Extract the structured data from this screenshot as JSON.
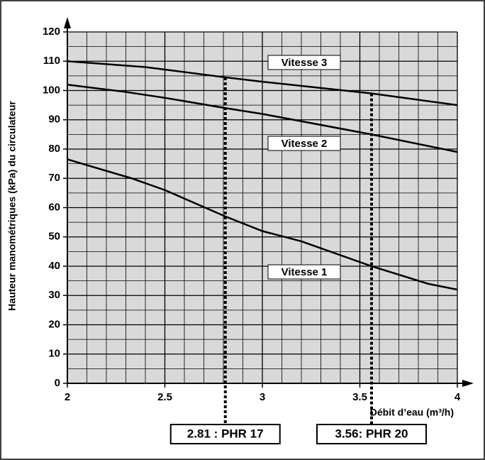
{
  "chart_data": {
    "type": "line",
    "x_label": "Débit d’eau (m³/h)",
    "y_label": "Hauteur manométriques (kPa)  du circulateur",
    "xlim": [
      2,
      4
    ],
    "ylim": [
      0,
      120
    ],
    "xticks": [
      2,
      2.5,
      3,
      3.5,
      4
    ],
    "yticks": [
      0,
      10,
      20,
      30,
      40,
      50,
      60,
      70,
      80,
      90,
      100,
      110,
      120
    ],
    "grid": true,
    "minor_divisions": {
      "x": 5,
      "y": 2
    },
    "series": [
      {
        "name": "Vitesse 3",
        "color": "#000000",
        "x": [
          2,
          2.4,
          2.81,
          3,
          3.56,
          4
        ],
        "values": [
          110,
          108,
          104.5,
          103,
          99,
          95
        ]
      },
      {
        "name": "Vitesse 2",
        "color": "#000000",
        "x": [
          2,
          2.3,
          2.5,
          2.81,
          3,
          3.56,
          4
        ],
        "values": [
          102,
          99.5,
          97.5,
          94,
          92,
          85,
          79
        ]
      },
      {
        "name": "Vitesse 1",
        "color": "#000000",
        "x": [
          2,
          2.33,
          2.5,
          2.81,
          3,
          3.2,
          3.56,
          3.85,
          4
        ],
        "values": [
          76.5,
          70,
          66,
          57,
          52,
          48.5,
          40,
          34,
          32
        ]
      }
    ],
    "markers": [
      {
        "x": 2.81,
        "label": "2.81 : PHR 17"
      },
      {
        "x": 3.56,
        "label": "3.56: PHR 20"
      }
    ]
  }
}
